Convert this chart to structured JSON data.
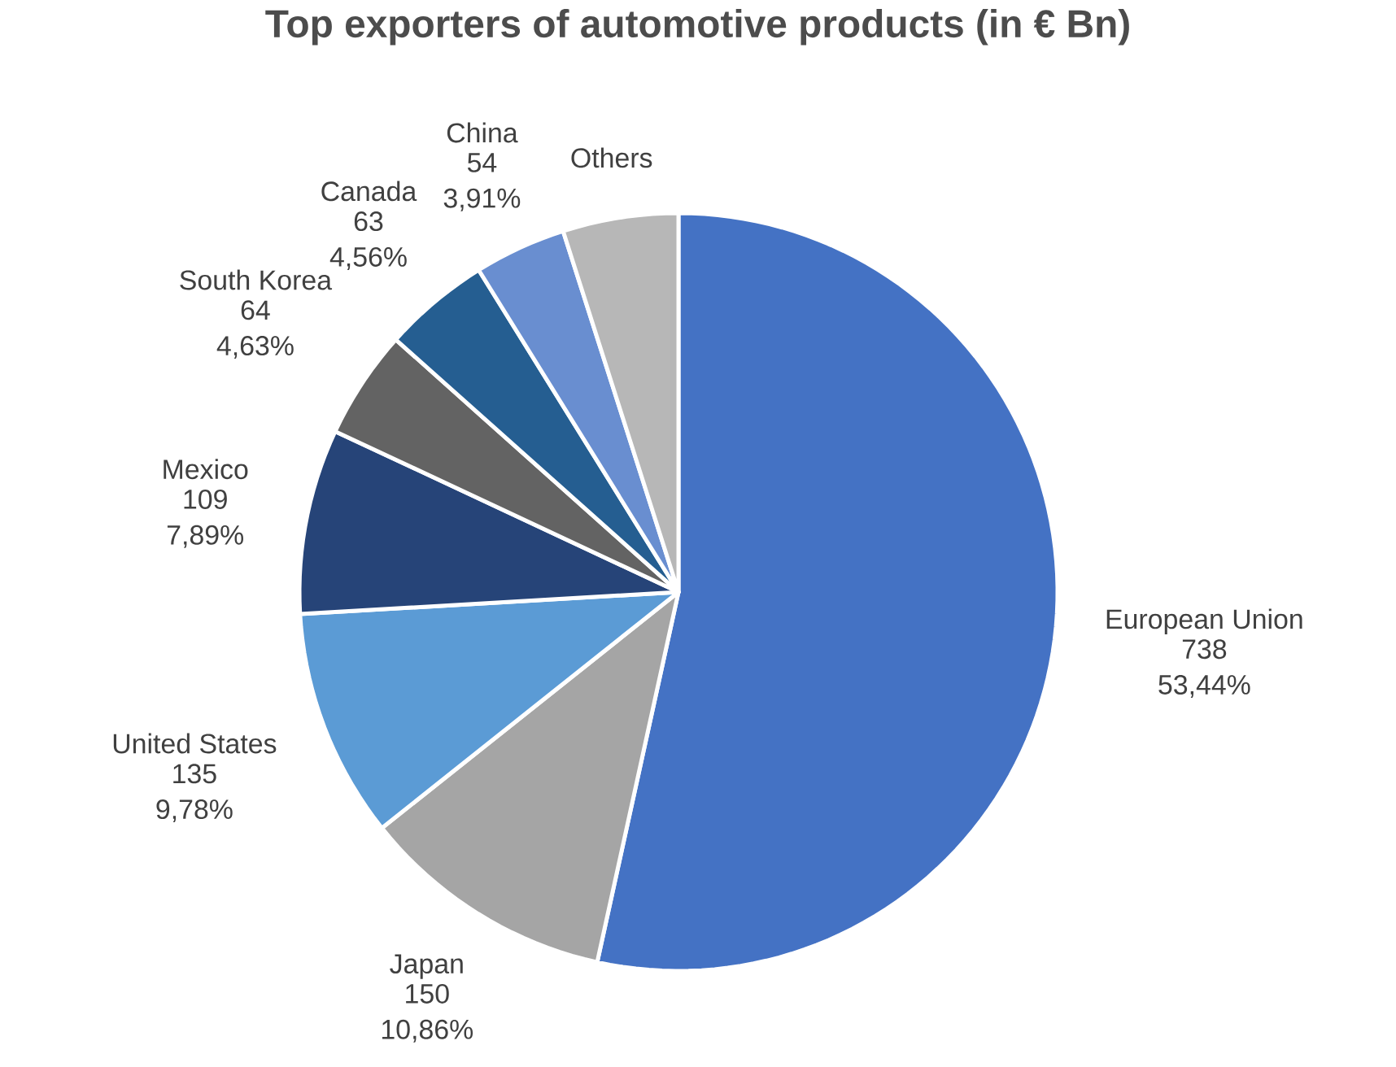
{
  "chart_data": {
    "type": "pie",
    "title": "Top exporters of automotive products (in € Bn)",
    "categories": [
      "European Union",
      "Japan",
      "United States",
      "Mexico",
      "South Korea",
      "Canada",
      "China",
      "Others"
    ],
    "values": [
      738,
      150,
      135,
      109,
      64,
      63,
      54,
      68
    ],
    "value_labels": [
      "738 53,44%",
      "150 10,86%",
      "135 9,78%",
      "109 7,89%",
      "64 4,63%",
      "63 4,56%",
      "54 3,91%",
      null
    ],
    "colors": [
      "#4472c4",
      "#a5a5a5",
      "#5b9bd5",
      "#264478",
      "#636363",
      "#255e91",
      "#698ed0",
      "#b7b7b7"
    ]
  }
}
